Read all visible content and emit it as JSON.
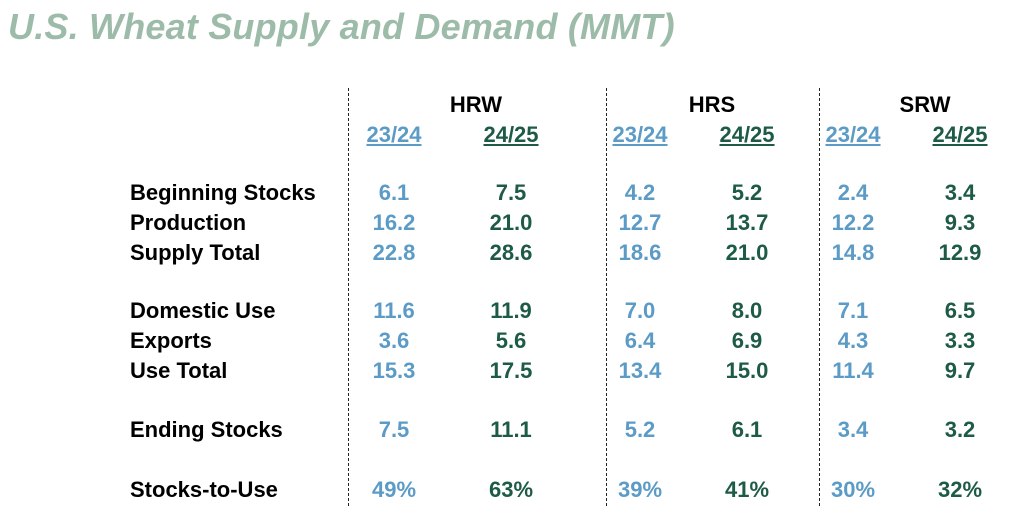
{
  "title": "U.S. Wheat Supply and Demand (MMT)",
  "groups": [
    "HRW",
    "HRS",
    "SRW"
  ],
  "years": [
    "23/24",
    "24/25"
  ],
  "colors": {
    "title": "#9dbba9",
    "old_year": "#5b9bc6",
    "new_year": "#1e5b45"
  },
  "rows": [
    {
      "label": "Beginning Stocks",
      "values": [
        "6.1",
        "7.5",
        "4.2",
        "5.2",
        "2.4",
        "3.4"
      ]
    },
    {
      "label": "Production",
      "values": [
        "16.2",
        "21.0",
        "12.7",
        "13.7",
        "12.2",
        "9.3"
      ]
    },
    {
      "label": "Supply Total",
      "values": [
        "22.8",
        "28.6",
        "18.6",
        "21.0",
        "14.8",
        "12.9"
      ]
    },
    {
      "label": "Domestic Use",
      "values": [
        "11.6",
        "11.9",
        "7.0",
        "8.0",
        "7.1",
        "6.5"
      ]
    },
    {
      "label": "Exports",
      "values": [
        "3.6",
        "5.6",
        "6.4",
        "6.9",
        "4.3",
        "3.3"
      ]
    },
    {
      "label": "Use Total",
      "values": [
        "15.3",
        "17.5",
        "13.4",
        "15.0",
        "11.4",
        "9.7"
      ]
    },
    {
      "label": "Ending Stocks",
      "values": [
        "7.5",
        "11.1",
        "5.2",
        "6.1",
        "3.4",
        "3.2"
      ]
    },
    {
      "label": "Stocks-to-Use",
      "values": [
        "49%",
        "63%",
        "39%",
        "41%",
        "30%",
        "32%"
      ]
    }
  ]
}
